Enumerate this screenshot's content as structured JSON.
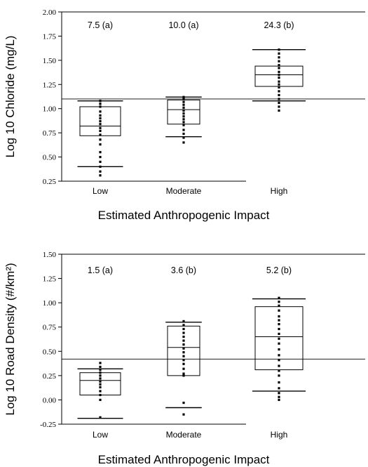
{
  "chart_data": [
    {
      "type": "box",
      "ylabel": "Log 10 Chloride (mg/L)",
      "xlabel": "Estimated Anthropogenic Impact",
      "ylim": [
        0.25,
        2.0
      ],
      "yticks": [
        "0.25",
        "0.50",
        "0.75",
        "1.00",
        "1.25",
        "1.50",
        "1.75",
        "2.00"
      ],
      "reference_line": 1.1,
      "categories": [
        "Low",
        "Moderate",
        "High"
      ],
      "annotations": [
        "7.5 (a)",
        "10.0 (a)",
        "24.3 (b)"
      ],
      "boxes": [
        {
          "whisker_low": 0.4,
          "q1": 0.72,
          "median": 0.82,
          "q3": 1.02,
          "whisker_high": 1.08,
          "points": [
            1.08,
            1.05,
            1.02,
            0.97,
            0.93,
            0.9,
            0.87,
            0.84,
            0.8,
            0.77,
            0.73,
            0.68,
            0.63,
            0.55,
            0.5,
            0.45,
            0.4,
            0.35,
            0.31
          ]
        },
        {
          "whisker_low": 0.71,
          "q1": 0.84,
          "median": 0.99,
          "q3": 1.09,
          "whisker_high": 1.12,
          "points": [
            1.12,
            1.1,
            1.07,
            1.04,
            1.01,
            0.98,
            0.95,
            0.92,
            0.89,
            0.86,
            0.83,
            0.78,
            0.74,
            0.7,
            0.65
          ]
        },
        {
          "whisker_low": 1.08,
          "q1": 1.23,
          "median": 1.35,
          "q3": 1.44,
          "whisker_high": 1.61,
          "points": [
            1.61,
            1.57,
            1.53,
            1.49,
            1.45,
            1.42,
            1.38,
            1.35,
            1.32,
            1.28,
            1.25,
            1.22,
            1.18,
            1.14,
            1.1,
            1.06,
            1.02,
            0.98
          ]
        }
      ]
    },
    {
      "type": "box",
      "ylabel": "Log 10 Road Density (#/km²)",
      "xlabel": "Estimated Anthropogenic Impact",
      "ylim": [
        -0.25,
        1.5
      ],
      "yticks": [
        "-0.25",
        "0.00",
        "0.25",
        "0.50",
        "0.75",
        "1.00",
        "1.25",
        "1.50"
      ],
      "reference_line": 0.42,
      "categories": [
        "Low",
        "Moderate",
        "High"
      ],
      "annotations": [
        "1.5 (a)",
        "3.6 (b)",
        "5.2 (b)"
      ],
      "boxes": [
        {
          "whisker_low": -0.19,
          "q1": 0.05,
          "median": 0.2,
          "q3": 0.28,
          "whisker_high": 0.32,
          "points": [
            0.38,
            0.34,
            0.31,
            0.28,
            0.25,
            0.22,
            0.19,
            0.16,
            0.13,
            0.09,
            0.05,
            0.0,
            -0.18
          ]
        },
        {
          "whisker_low": -0.08,
          "q1": 0.25,
          "median": 0.54,
          "q3": 0.76,
          "whisker_high": 0.8,
          "points": [
            0.81,
            0.77,
            0.73,
            0.69,
            0.65,
            0.61,
            0.57,
            0.53,
            0.49,
            0.45,
            0.41,
            0.37,
            0.32,
            0.27,
            0.25,
            -0.03,
            -0.15
          ]
        },
        {
          "whisker_low": 0.09,
          "q1": 0.31,
          "median": 0.65,
          "q3": 0.96,
          "whisker_high": 1.04,
          "points": [
            1.05,
            1.01,
            0.97,
            0.92,
            0.86,
            0.82,
            0.78,
            0.73,
            0.68,
            0.63,
            0.58,
            0.52,
            0.46,
            0.41,
            0.35,
            0.3,
            0.25,
            0.18,
            0.12,
            0.07,
            0.03,
            0.0
          ]
        }
      ]
    }
  ]
}
